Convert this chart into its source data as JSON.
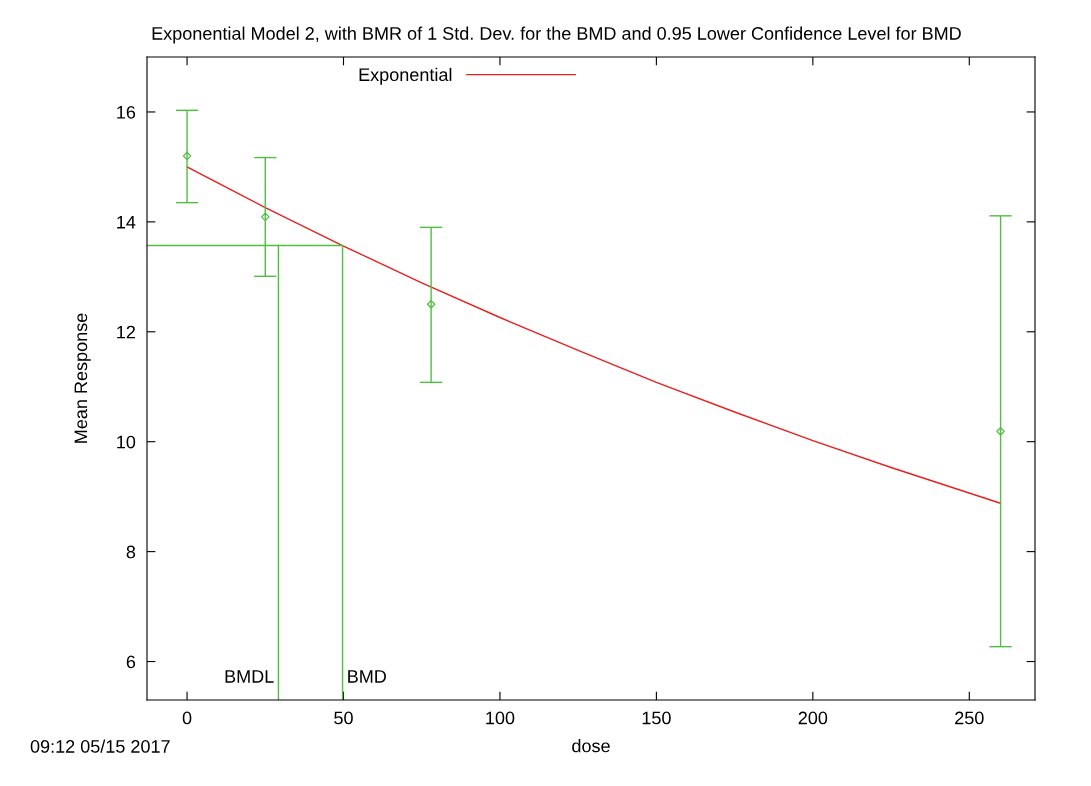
{
  "chart_data": {
    "type": "scatter",
    "title": "Exponential Model 2, with BMR of 1 Std. Dev. for the BMD and 0.95 Lower Confidence Level for BMD",
    "xlabel": "dose",
    "ylabel": "Mean Response",
    "xlim": [
      -12.8,
      271
    ],
    "ylim": [
      5.3,
      17
    ],
    "xticks": [
      0,
      50,
      100,
      150,
      200,
      250
    ],
    "yticks": [
      6,
      8,
      10,
      12,
      14,
      16
    ],
    "grid": false,
    "legend": "top",
    "series": [
      {
        "color": "#4fbf3f",
        "marker": "diamond",
        "x": [
          0,
          25,
          78,
          260
        ],
        "values": [
          15.2,
          14.09,
          12.5,
          10.19
        ],
        "errors": [
          [
            14.35,
            16.03
          ],
          [
            13.01,
            15.17
          ],
          [
            11.08,
            13.9
          ],
          [
            6.27,
            14.11
          ]
        ]
      },
      {
        "type": "line",
        "name": "Exponential",
        "color": "#e8211f",
        "x": [
          0,
          25,
          50,
          75,
          100,
          125,
          150,
          175,
          200,
          225,
          260
        ],
        "values": [
          15,
          14.26,
          13.56,
          12.89,
          12.26,
          11.66,
          11.08,
          10.54,
          10.02,
          9.53,
          8.88
        ]
      },
      {
        "type": "line",
        "color": "#4fbf3f",
        "x": [
          -12.8,
          49.7,
          49.7
        ],
        "values": [
          13.57,
          13.57,
          5.3
        ]
      },
      {
        "type": "line",
        "color": "#4fbf3f",
        "x": [
          29.2,
          29.2
        ],
        "values": [
          13.57,
          5.3
        ]
      }
    ],
    "annotations": [
      {
        "text": "BMDL",
        "x": 29.2,
        "y": 5.7
      },
      {
        "text": "BMD",
        "x": 49.7,
        "y": 5.7
      },
      "09:12 05/15 2017"
    ]
  }
}
